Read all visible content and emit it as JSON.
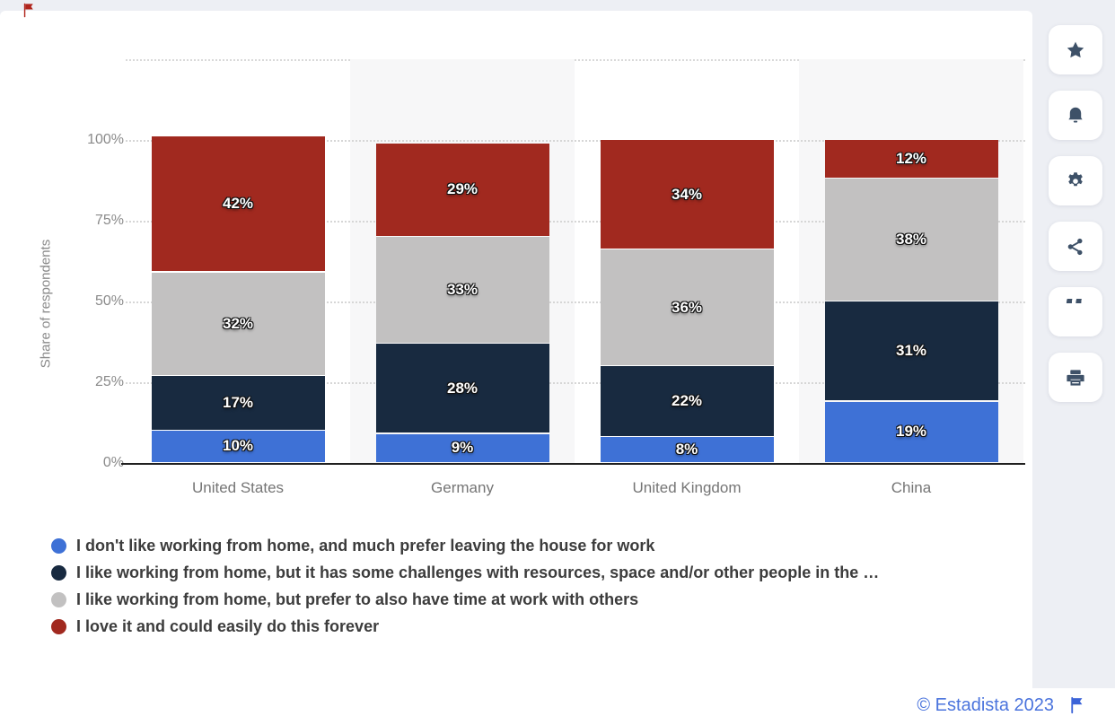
{
  "chart_data": {
    "type": "bar",
    "stacked": true,
    "title": "",
    "xlabel": "",
    "ylabel": "Share of respondents",
    "ylim": [
      0,
      100
    ],
    "yticks": [
      "0%",
      "25%",
      "50%",
      "75%",
      "100%"
    ],
    "grid": "horizontal-dotted",
    "legend_position": "bottom",
    "value_suffix": "%",
    "categories": [
      "United States",
      "Germany",
      "United Kingdom",
      "China"
    ],
    "series": [
      {
        "name": "I don't like working from home, and much prefer leaving the house for work",
        "color": "#3e71d6",
        "values": [
          10,
          9,
          8,
          19
        ]
      },
      {
        "name": "I like working from home, but it has some challenges with resources, space and/or other people in the …",
        "color": "#182a40",
        "values": [
          17,
          28,
          22,
          31
        ]
      },
      {
        "name": "I like working from home, but prefer to also have time at work with others",
        "color": "#c2c1c1",
        "values": [
          32,
          33,
          36,
          38
        ]
      },
      {
        "name": "I love it and could easily do this forever",
        "color": "#a1291f",
        "values": [
          42,
          29,
          34,
          12
        ]
      }
    ]
  },
  "sidebar": {
    "buttons": [
      {
        "id": "favorite",
        "icon": "star-icon"
      },
      {
        "id": "notifications",
        "icon": "bell-icon"
      },
      {
        "id": "settings",
        "icon": "gear-icon"
      },
      {
        "id": "share",
        "icon": "share-icon"
      },
      {
        "id": "cite",
        "icon": "quote-icon"
      },
      {
        "id": "print",
        "icon": "printer-icon"
      }
    ]
  },
  "icons": {
    "quote_glyph": "“",
    "top_left_marker": "red-flag-icon",
    "footer_marker": "blue-flag-icon"
  },
  "footer": {
    "copyright": "© Estadista 2023"
  },
  "colors": {
    "page_background": "#edeff4",
    "card_background": "#ffffff",
    "stripe": "#f7f7f8",
    "axis": "#202020",
    "tick_text": "#8a8a8a",
    "category_text": "#757575",
    "legend_text": "#3c3c3c",
    "footer_link": "#4b74dd",
    "toolbar_icon": "#3e5168"
  }
}
